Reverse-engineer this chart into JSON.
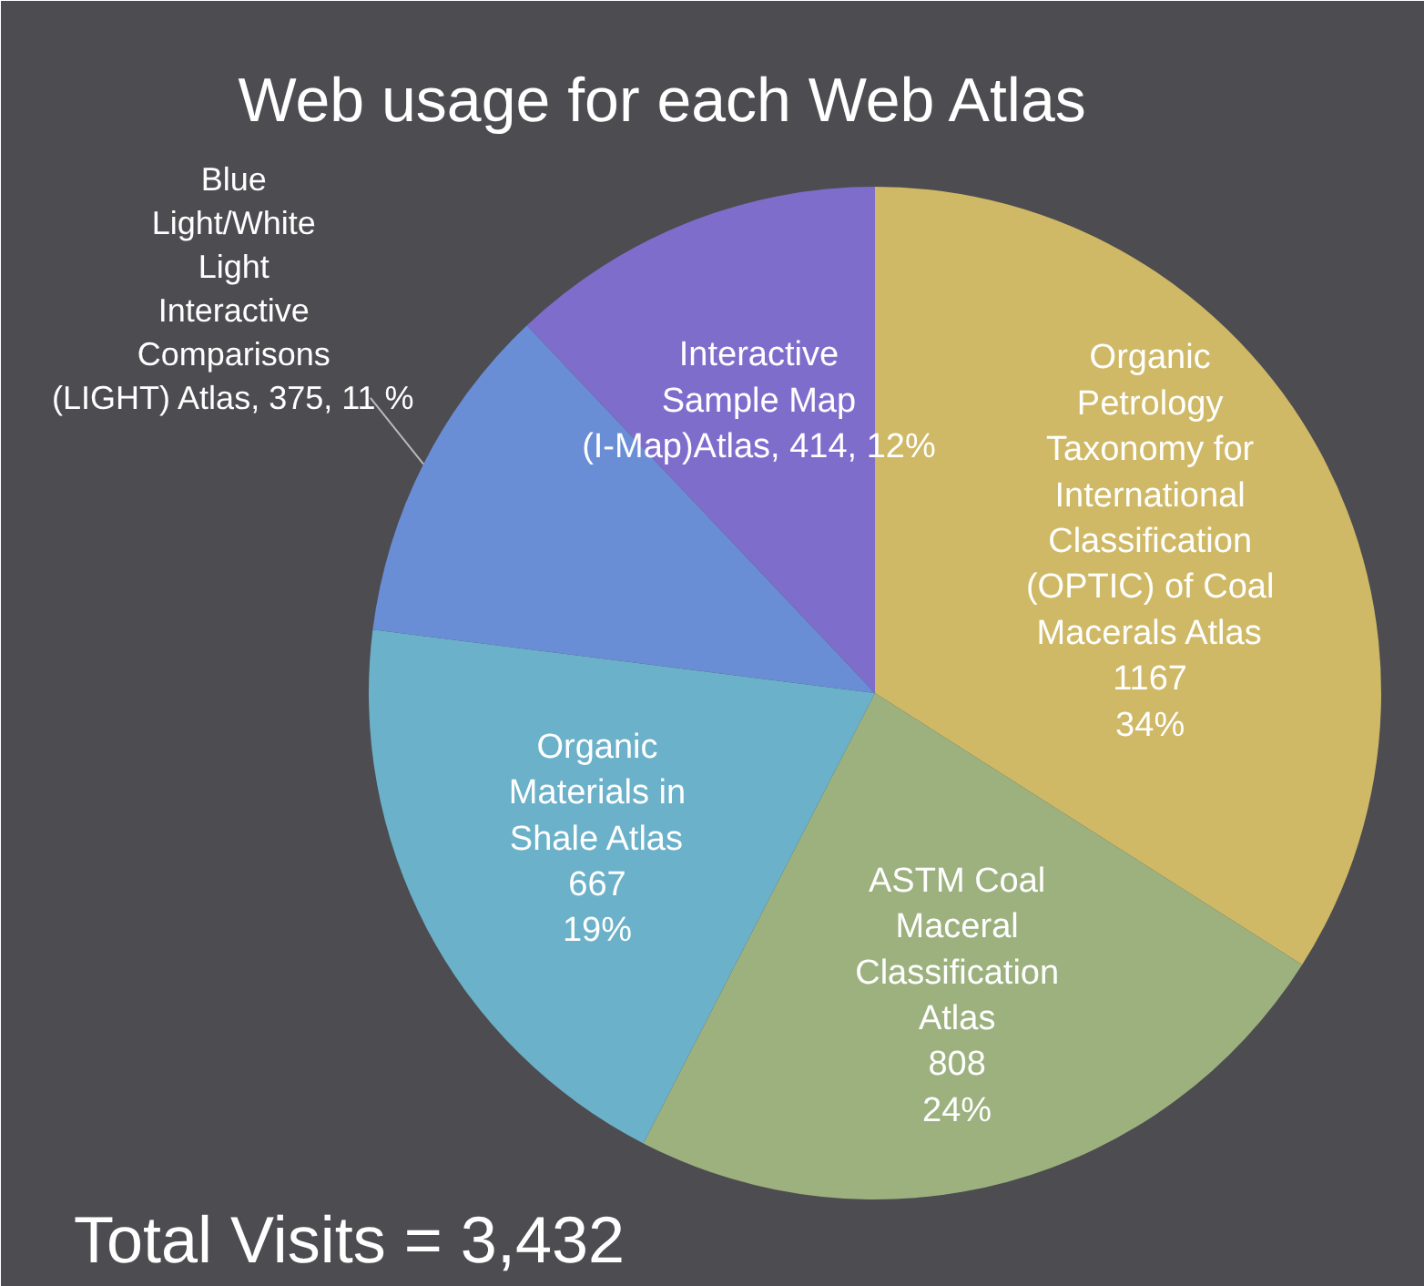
{
  "chart_data": {
    "type": "pie",
    "title": "Web usage for each Web Atlas",
    "categories": [
      "Organic Petrology Taxonomy for International Classification (OPTIC) of Coal Macerals Atlas",
      "ASTM Coal Maceral Classification Atlas",
      "Organic Materials in Shale Atlas",
      "Blue Light/White Light Interactive Comparisons (LIGHT) Atlas",
      "Interactive Sample Map (I-Map)Atlas"
    ],
    "values": [
      1167,
      808,
      667,
      375,
      414
    ],
    "colors": [
      "#cfb966",
      "#9db17f",
      "#6bb1c9",
      "#6a8ed6",
      "#7f6dcc"
    ],
    "value_labels": [
      "1167\n34%",
      "808\n24%",
      "667\n19%",
      "375, 11 %",
      "414, 12%"
    ],
    "annotations": [
      "Total Visits = 3,432"
    ]
  }
}
